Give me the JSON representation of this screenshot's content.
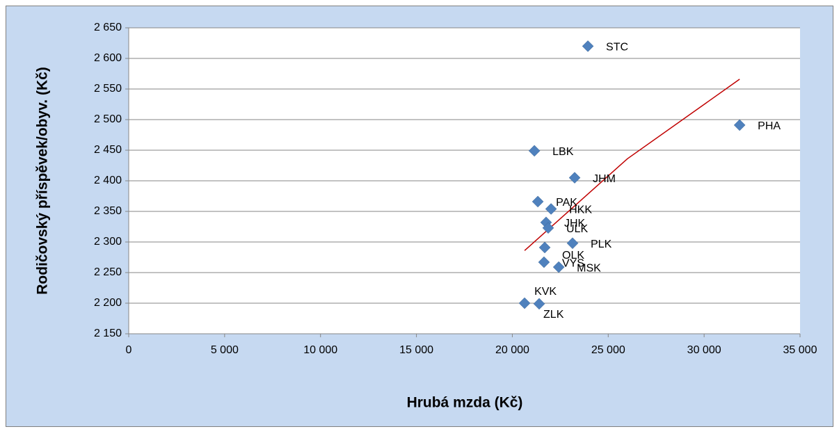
{
  "chart_data": {
    "type": "scatter",
    "x_label": "Hrubá mzda (Kč)",
    "y_label": "Rodičovský příspěvek/obyv. (Kč)",
    "color": "#4f81bd",
    "labels": [
      "STC",
      "PHA",
      "LBK",
      "JHM",
      "PAK",
      "HKK",
      "JHK",
      "ULK",
      "PLK",
      "OLK",
      "VYS",
      "MSK",
      "KVK",
      "ZLK"
    ],
    "x": [
      23940,
      31850,
      21150,
      23250,
      21330,
      22020,
      21760,
      21870,
      23140,
      21690,
      21650,
      22420,
      20640,
      21400
    ],
    "values": [
      2620,
      2491,
      2449,
      2405,
      2366,
      2354,
      2332,
      2323,
      2298,
      2291,
      2267,
      2259,
      2200,
      2199
    ],
    "trendline": {
      "color": "#c00000",
      "x": [
        20640,
        26000,
        31850
      ],
      "y": [
        2286,
        2436,
        2566
      ]
    },
    "xlim": [
      0,
      35000
    ],
    "xticks": [
      0,
      {
        "value": 5000,
        "label": "5 000"
      },
      {
        "value": 10000,
        "label": "10 000"
      },
      {
        "value": 15000,
        "label": "15 000"
      },
      {
        "value": 20000,
        "label": "20 000"
      },
      {
        "value": 25000,
        "label": "25 000"
      },
      {
        "value": 30000,
        "label": "30 000"
      },
      {
        "value": 35000,
        "label": "35 000"
      }
    ],
    "ylim": [
      2150,
      2650
    ],
    "yticks": [
      {
        "value": 2150,
        "label": "2 150"
      },
      {
        "value": 2200,
        "label": "2 200"
      },
      {
        "value": 2250,
        "label": "2 250"
      },
      {
        "value": 2300,
        "label": "2 300"
      },
      {
        "value": 2350,
        "label": "2 350"
      },
      {
        "value": 2400,
        "label": "2 400"
      },
      {
        "value": 2450,
        "label": "2 450"
      },
      {
        "value": 2500,
        "label": "2 500"
      },
      {
        "value": 2550,
        "label": "2 550"
      },
      {
        "value": 2600,
        "label": "2 600"
      },
      {
        "value": 2650,
        "label": "2 650"
      }
    ],
    "grid": true
  }
}
